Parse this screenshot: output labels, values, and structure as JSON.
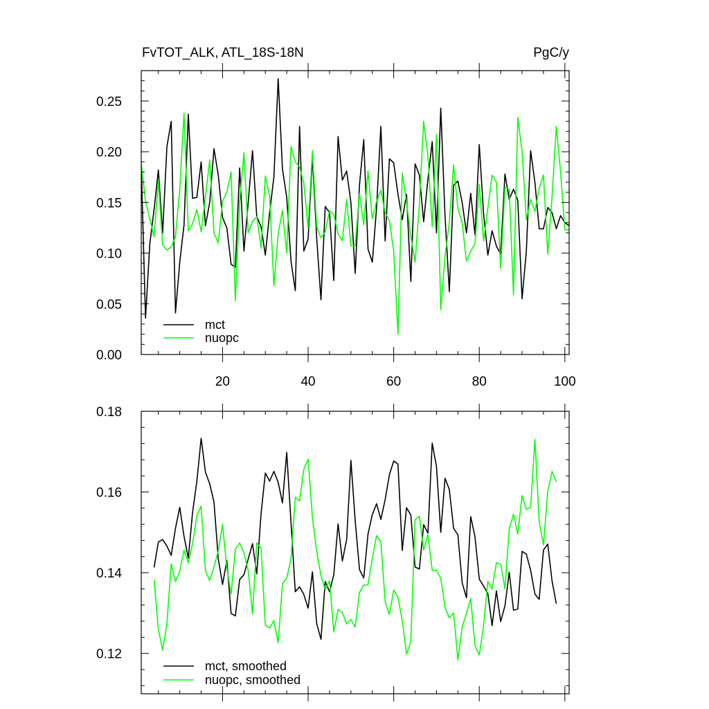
{
  "chart_data": [
    {
      "type": "line",
      "title": "FvTOT_ALK, ATL_18S-18N",
      "units": "PgC/y",
      "xlim": [
        1,
        101
      ],
      "ylim": [
        0,
        0.28
      ],
      "xticks": [
        20,
        40,
        60,
        80,
        100
      ],
      "yticks": [
        0.0,
        0.05,
        0.1,
        0.15,
        0.2,
        0.25
      ],
      "xtick_labels": [
        "20",
        "40",
        "60",
        "80",
        "100"
      ],
      "ytick_labels": [
        "0.00",
        "0.05",
        "0.10",
        "0.15",
        "0.20",
        "0.25"
      ],
      "legend_position": "bottom-left",
      "x": [
        1,
        2,
        3,
        4,
        5,
        6,
        7,
        8,
        9,
        10,
        11,
        12,
        13,
        14,
        15,
        16,
        17,
        18,
        19,
        20,
        21,
        22,
        23,
        24,
        25,
        26,
        27,
        28,
        29,
        30,
        31,
        32,
        33,
        34,
        35,
        36,
        37,
        38,
        39,
        40,
        41,
        42,
        43,
        44,
        45,
        46,
        47,
        48,
        49,
        50,
        51,
        52,
        53,
        54,
        55,
        56,
        57,
        58,
        59,
        60,
        61,
        62,
        63,
        64,
        65,
        66,
        67,
        68,
        69,
        70,
        71,
        72,
        73,
        74,
        75,
        76,
        77,
        78,
        79,
        80,
        81,
        82,
        83,
        84,
        85,
        86,
        87,
        88,
        89,
        90,
        91,
        92,
        93,
        94,
        95,
        96,
        97,
        98,
        99,
        100,
        101
      ],
      "series": [
        {
          "name": "mct",
          "color": "#000000",
          "values": [
            0.186,
            0.036,
            0.109,
            0.143,
            0.182,
            0.12,
            0.205,
            0.23,
            0.041,
            0.091,
            0.128,
            0.237,
            0.154,
            0.155,
            0.19,
            0.127,
            0.15,
            0.203,
            0.177,
            0.135,
            0.125,
            0.089,
            0.086,
            0.184,
            0.102,
            0.15,
            0.201,
            0.136,
            0.126,
            0.098,
            0.14,
            0.175,
            0.272,
            0.183,
            0.155,
            0.092,
            0.063,
            0.225,
            0.102,
            0.114,
            0.195,
            0.115,
            0.054,
            0.146,
            0.14,
            0.073,
            0.215,
            0.172,
            0.181,
            0.15,
            0.08,
            0.167,
            0.212,
            0.104,
            0.091,
            0.145,
            0.225,
            0.112,
            0.193,
            0.189,
            0.158,
            0.133,
            0.158,
            0.072,
            0.188,
            0.177,
            0.131,
            0.173,
            0.21,
            0.12,
            0.243,
            0.136,
            0.062,
            0.167,
            0.171,
            0.15,
            0.12,
            0.159,
            0.118,
            0.207,
            0.139,
            0.098,
            0.122,
            0.107,
            0.099,
            0.178,
            0.153,
            0.163,
            0.152,
            0.055,
            0.102,
            0.201,
            0.17,
            0.124,
            0.124,
            0.145,
            0.14,
            0.124,
            0.137,
            0.13,
            0.127
          ]
        },
        {
          "name": "nuopc",
          "color": "#00ff00",
          "values": [
            0.189,
            0.151,
            0.134,
            0.116,
            0.172,
            0.108,
            0.103,
            0.106,
            0.116,
            0.163,
            0.238,
            0.122,
            0.129,
            0.143,
            0.121,
            0.155,
            0.192,
            0.12,
            0.11,
            0.151,
            0.16,
            0.18,
            0.053,
            0.151,
            0.199,
            0.12,
            0.131,
            0.136,
            0.105,
            0.176,
            0.156,
            0.068,
            0.119,
            0.142,
            0.1,
            0.205,
            0.19,
            0.185,
            0.169,
            0.125,
            0.201,
            0.126,
            0.115,
            0.121,
            0.142,
            0.138,
            0.119,
            0.112,
            0.153,
            0.107,
            0.107,
            0.159,
            0.128,
            0.181,
            0.134,
            0.151,
            0.162,
            0.14,
            0.132,
            0.102,
            0.02,
            0.179,
            0.15,
            0.117,
            0.091,
            0.148,
            0.23,
            0.196,
            0.126,
            0.217,
            0.044,
            0.097,
            0.13,
            0.187,
            0.144,
            0.13,
            0.092,
            0.102,
            0.109,
            0.168,
            0.112,
            0.144,
            0.177,
            0.17,
            0.085,
            0.165,
            0.163,
            0.059,
            0.234,
            0.2,
            0.133,
            0.153,
            0.141,
            0.164,
            0.177,
            0.099,
            0.155,
            0.225,
            0.18,
            0.123,
            0.123
          ]
        }
      ]
    },
    {
      "type": "line",
      "xlim": [
        1,
        101
      ],
      "ylim": [
        0.11,
        0.18
      ],
      "xticks": [
        20,
        40,
        60,
        80,
        100
      ],
      "yticks": [
        0.12,
        0.14,
        0.16,
        0.18
      ],
      "ytick_labels": [
        "0.12",
        "0.14",
        "0.16",
        "0.18"
      ],
      "legend_position": "bottom-left",
      "x": [
        4,
        5,
        6,
        7,
        8,
        9,
        10,
        11,
        12,
        13,
        14,
        15,
        16,
        17,
        18,
        19,
        20,
        21,
        22,
        23,
        24,
        25,
        26,
        27,
        28,
        29,
        30,
        31,
        32,
        33,
        34,
        35,
        36,
        37,
        38,
        39,
        40,
        41,
        42,
        43,
        44,
        45,
        46,
        47,
        48,
        49,
        50,
        51,
        52,
        53,
        54,
        55,
        56,
        57,
        58,
        59,
        60,
        61,
        62,
        63,
        64,
        65,
        66,
        67,
        68,
        69,
        70,
        71,
        72,
        73,
        74,
        75,
        76,
        77,
        78,
        79,
        80,
        81,
        82,
        83,
        84,
        85,
        86,
        87,
        88,
        89,
        90,
        91,
        92,
        93,
        94,
        95,
        96,
        97,
        98
      ],
      "series": [
        {
          "name": "mct, smoothed",
          "color": "#000000",
          "values": [
            0.1413,
            0.1476,
            0.1482,
            0.1466,
            0.1443,
            0.151,
            0.1562,
            0.149,
            0.1436,
            0.155,
            0.1627,
            0.1733,
            0.1649,
            0.162,
            0.1575,
            0.1434,
            0.1371,
            0.143,
            0.1299,
            0.1293,
            0.1383,
            0.1395,
            0.1434,
            0.1472,
            0.1397,
            0.1546,
            0.1647,
            0.1627,
            0.1651,
            0.1624,
            0.1573,
            0.1698,
            0.1524,
            0.1353,
            0.1365,
            0.1346,
            0.1312,
            0.1402,
            0.1274,
            0.1235,
            0.1378,
            0.1353,
            0.1395,
            0.1521,
            0.1429,
            0.1482,
            0.1678,
            0.1529,
            0.1408,
            0.1387,
            0.1496,
            0.1544,
            0.1571,
            0.1532,
            0.1581,
            0.1643,
            0.1677,
            0.1669,
            0.1455,
            0.1561,
            0.1543,
            0.1414,
            0.1409,
            0.1519,
            0.1498,
            0.1721,
            0.1663,
            0.15,
            0.1634,
            0.1606,
            0.151,
            0.1494,
            0.1375,
            0.1338,
            0.1539,
            0.1489,
            0.1384,
            0.1367,
            0.1348,
            0.1269,
            0.1355,
            0.1279,
            0.1318,
            0.1401,
            0.1307,
            0.131,
            0.1453,
            0.1446,
            0.1406,
            0.1347,
            0.1334,
            0.1456,
            0.1471,
            0.138,
            0.1323
          ]
        },
        {
          "name": "nuopc, smoothed",
          "color": "#00ff00",
          "values": [
            0.1382,
            0.126,
            0.1208,
            0.1274,
            0.1422,
            0.1378,
            0.1405,
            0.1456,
            0.1424,
            0.1472,
            0.1542,
            0.1565,
            0.1404,
            0.1381,
            0.1414,
            0.1454,
            0.152,
            0.1412,
            0.1347,
            0.1458,
            0.1474,
            0.1449,
            0.1405,
            0.1298,
            0.1474,
            0.146,
            0.127,
            0.1263,
            0.1281,
            0.1226,
            0.1373,
            0.1386,
            0.1436,
            0.1587,
            0.1578,
            0.1656,
            0.1681,
            0.1537,
            0.1454,
            0.1393,
            0.1358,
            0.138,
            0.1253,
            0.1309,
            0.1301,
            0.1273,
            0.1284,
            0.1265,
            0.1351,
            0.1369,
            0.137,
            0.1436,
            0.1492,
            0.1477,
            0.1329,
            0.1296,
            0.1357,
            0.1339,
            0.1281,
            0.1198,
            0.1229,
            0.1531,
            0.154,
            0.1456,
            0.1494,
            0.1406,
            0.1406,
            0.1386,
            0.1314,
            0.1288,
            0.13,
            0.1184,
            0.1266,
            0.1299,
            0.1336,
            0.1219,
            0.1196,
            0.1268,
            0.1379,
            0.1359,
            0.1425,
            0.1421,
            0.136,
            0.1508,
            0.1545,
            0.1496,
            0.1591,
            0.1557,
            0.1562,
            0.173,
            0.1527,
            0.1469,
            0.1601,
            0.1651,
            0.1625
          ]
        }
      ]
    }
  ]
}
